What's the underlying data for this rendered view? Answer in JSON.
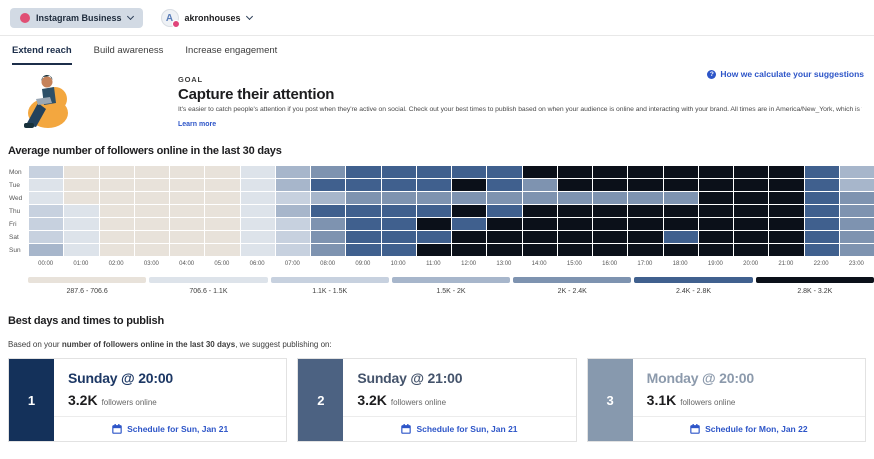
{
  "header": {
    "channel_selector": {
      "label": "Instagram Business"
    },
    "account": {
      "name": "akronhouses",
      "avatar_letter": "A"
    }
  },
  "tabs": [
    {
      "label": "Extend reach",
      "active": true
    },
    {
      "label": "Build awareness",
      "active": false
    },
    {
      "label": "Increase engagement",
      "active": false
    }
  ],
  "goal": {
    "eyebrow": "GOAL",
    "title": "Capture their attention",
    "description": "It's easier to catch people's attention if you post when they're active on social. Check out your best times to publish based on when your audience is online and interacting with your brand. All times are in America/New_York, which is the time zone selected in your account settings.",
    "learn_more_label": "Learn more",
    "help_link_label": "How we calculate your suggestions"
  },
  "chart_data": {
    "type": "heatmap",
    "title": "Average number of followers online in the last 30 days",
    "rows": [
      "Mon",
      "Tue",
      "Wed",
      "Thu",
      "Fri",
      "Sat",
      "Sun"
    ],
    "columns": [
      "00:00",
      "01:00",
      "02:00",
      "03:00",
      "04:00",
      "05:00",
      "06:00",
      "07:00",
      "08:00",
      "09:00",
      "10:00",
      "11:00",
      "12:00",
      "13:00",
      "14:00",
      "15:00",
      "16:00",
      "17:00",
      "18:00",
      "19:00",
      "20:00",
      "21:00",
      "22:00",
      "23:00"
    ],
    "legend_labels": [
      "287.6 - 706.6",
      "706.6 - 1.1K",
      "1.1K - 1.5K",
      "1.5K - 2K",
      "2K - 2.4K",
      "2.4K - 2.8K",
      "2.8K - 3.2K"
    ],
    "level_colors": [
      "#e8e2da",
      "#dde3ea",
      "#c7d1df",
      "#a7b6cb",
      "#7e93b0",
      "#40608e",
      "#0b1019"
    ],
    "values": [
      [
        3,
        1,
        1,
        1,
        1,
        1,
        2,
        4,
        5,
        6,
        6,
        6,
        6,
        6,
        7,
        7,
        7,
        7,
        7,
        7,
        7,
        7,
        6,
        4
      ],
      [
        2,
        1,
        1,
        1,
        1,
        1,
        2,
        4,
        6,
        6,
        6,
        6,
        7,
        6,
        5,
        7,
        7,
        7,
        7,
        7,
        7,
        7,
        6,
        4
      ],
      [
        2,
        1,
        1,
        1,
        1,
        1,
        2,
        3,
        4,
        5,
        5,
        5,
        5,
        5,
        5,
        5,
        5,
        5,
        5,
        7,
        7,
        7,
        6,
        5
      ],
      [
        3,
        2,
        1,
        1,
        1,
        1,
        2,
        4,
        6,
        6,
        6,
        6,
        7,
        6,
        7,
        7,
        7,
        7,
        7,
        7,
        7,
        7,
        6,
        5
      ],
      [
        3,
        2,
        1,
        1,
        1,
        1,
        2,
        3,
        5,
        6,
        6,
        7,
        6,
        7,
        7,
        7,
        7,
        7,
        7,
        7,
        7,
        7,
        6,
        5
      ],
      [
        3,
        2,
        1,
        1,
        1,
        1,
        2,
        3,
        5,
        6,
        6,
        6,
        7,
        7,
        7,
        7,
        7,
        7,
        6,
        7,
        7,
        7,
        6,
        5
      ],
      [
        4,
        2,
        1,
        1,
        1,
        1,
        2,
        3,
        5,
        6,
        6,
        7,
        7,
        7,
        7,
        7,
        7,
        7,
        7,
        7,
        7,
        7,
        6,
        5
      ]
    ]
  },
  "best_times": {
    "title": "Best days and times to publish",
    "intro_prefix": "Based on your ",
    "intro_bold": "number of followers online in the last 30 days",
    "intro_suffix": ", we suggest publishing on:",
    "cards": [
      {
        "rank": "1",
        "title": "Sunday @ 20:00",
        "count": "3.2K",
        "count_suffix": "followers online",
        "schedule_label": "Schedule for Sun, Jan 21",
        "stripe_color": "#14315a",
        "title_color": "#1c3764"
      },
      {
        "rank": "2",
        "title": "Sunday @ 21:00",
        "count": "3.2K",
        "count_suffix": "followers online",
        "schedule_label": "Schedule for Sun, Jan 21",
        "stripe_color": "#4c6282",
        "title_color": "#44536b"
      },
      {
        "rank": "3",
        "title": "Monday @ 20:00",
        "count": "3.1K",
        "count_suffix": "followers online",
        "schedule_label": "Schedule for Mon, Jan 22",
        "stripe_color": "#8799ae",
        "title_color": "#8c9aac"
      }
    ]
  }
}
